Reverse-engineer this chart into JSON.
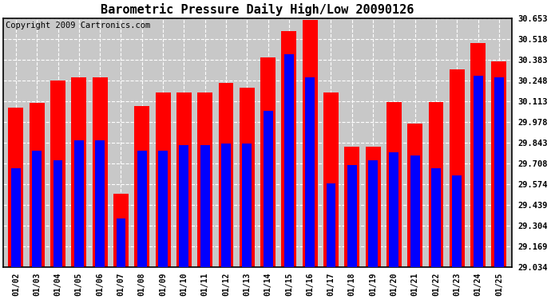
{
  "title": "Barometric Pressure Daily High/Low 20090126",
  "copyright_text": "Copyright 2009 Cartronics.com",
  "dates": [
    "01/02",
    "01/03",
    "01/04",
    "01/05",
    "01/06",
    "01/07",
    "01/08",
    "01/09",
    "01/10",
    "01/11",
    "01/12",
    "01/13",
    "01/14",
    "01/15",
    "01/16",
    "01/17",
    "01/18",
    "01/19",
    "01/20",
    "01/21",
    "01/22",
    "01/23",
    "01/24",
    "01/25"
  ],
  "highs": [
    30.07,
    30.1,
    30.25,
    30.27,
    30.27,
    29.51,
    30.08,
    30.17,
    30.17,
    30.17,
    30.23,
    30.2,
    30.4,
    30.57,
    30.64,
    30.17,
    29.82,
    29.82,
    30.11,
    29.97,
    30.11,
    30.32,
    30.49,
    30.37
  ],
  "lows": [
    29.68,
    29.79,
    29.73,
    29.86,
    29.86,
    29.35,
    29.79,
    29.79,
    29.83,
    29.83,
    29.84,
    29.84,
    30.05,
    30.42,
    30.27,
    29.58,
    29.7,
    29.73,
    29.78,
    29.76,
    29.68,
    29.63,
    30.28,
    30.27
  ],
  "ylim_min": 29.034,
  "ylim_max": 30.653,
  "yticks": [
    29.034,
    29.169,
    29.304,
    29.439,
    29.574,
    29.708,
    29.843,
    29.978,
    30.113,
    30.248,
    30.383,
    30.518,
    30.653
  ],
  "high_color": "#ff0000",
  "low_color": "#0000ff",
  "plot_bg_color": "#c8c8c8",
  "title_fontsize": 11,
  "copyright_fontsize": 7.5
}
